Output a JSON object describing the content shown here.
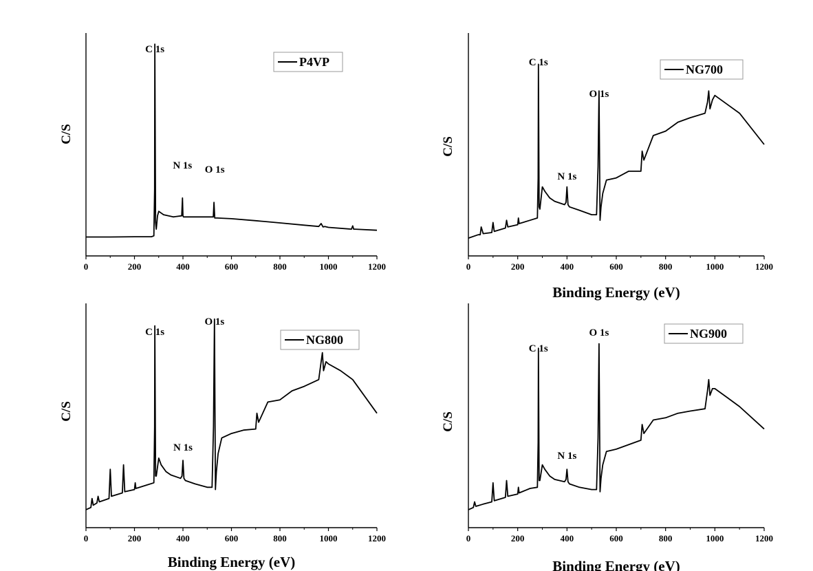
{
  "chart_data": [
    {
      "type": "line",
      "xlabel": "",
      "ylabel": "C/S",
      "xlim": [
        0,
        1200
      ],
      "ylim": [
        0,
        100
      ],
      "xticks": [
        "0",
        "200",
        "400",
        "600",
        "800",
        "1000",
        "1200"
      ],
      "series": [
        {
          "name": "P4VP",
          "color": "#000000",
          "x": [
            0,
            100,
            200,
            270,
            280,
            283,
            284,
            287,
            290,
            295,
            300,
            320,
            360,
            395,
            398,
            400,
            402,
            410,
            450,
            525,
            528,
            531,
            534,
            540,
            600,
            700,
            800,
            900,
            960,
            970,
            978,
            985,
            1000,
            1095,
            1100,
            1104,
            1110,
            1200
          ],
          "y": [
            8.5,
            8.5,
            8.6,
            8.6,
            9,
            30,
            95,
            15,
            12,
            18,
            20,
            18.5,
            17.5,
            18,
            26,
            18,
            17.5,
            17.5,
            17.5,
            17.5,
            24,
            17,
            17,
            17,
            16.7,
            15.8,
            14.8,
            13.8,
            13.2,
            14.5,
            13,
            13.2,
            12.8,
            12,
            13.5,
            12,
            12,
            11.5
          ]
        }
      ],
      "annotations": [
        {
          "text": "C 1s",
          "x": 284
        },
        {
          "text": "N 1s",
          "x": 398
        },
        {
          "text": "O 1s",
          "x": 531
        }
      ]
    },
    {
      "type": "line",
      "xlabel": "Binding Energy (eV)",
      "ylabel": "C/S",
      "xlim": [
        0,
        1200
      ],
      "ylim": [
        0,
        100
      ],
      "xticks": [
        "0",
        "200",
        "400",
        "600",
        "800",
        "1000",
        "1200"
      ],
      "series": [
        {
          "name": "NG700",
          "color": "#000000",
          "x": [
            0,
            40,
            48,
            52,
            60,
            95,
            100,
            105,
            150,
            155,
            160,
            200,
            203,
            206,
            250,
            280,
            283,
            284,
            287,
            290,
            300,
            310,
            330,
            350,
            390,
            396,
            400,
            404,
            410,
            450,
            500,
            520,
            526,
            530,
            534,
            538,
            545,
            560,
            600,
            650,
            700,
            705,
            712,
            750,
            800,
            850,
            900,
            960,
            970,
            975,
            980,
            990,
            1000,
            1050,
            1100,
            1200
          ],
          "y": [
            8,
            9.5,
            9.5,
            13,
            10,
            10.5,
            15,
            11,
            12.5,
            16,
            13,
            14,
            17,
            14.5,
            16,
            17,
            35,
            86,
            22,
            21,
            31,
            29,
            26,
            24.5,
            23,
            24,
            31,
            23,
            22,
            20.5,
            18.5,
            18.5,
            40,
            74,
            16,
            22,
            28,
            34,
            35,
            38,
            38,
            47,
            43,
            54,
            56,
            60,
            62,
            64,
            69,
            74,
            66,
            70,
            72,
            68,
            64,
            50
          ]
        }
      ],
      "annotations": [
        {
          "text": "C 1s",
          "x": 284
        },
        {
          "text": "N 1s",
          "x": 400
        },
        {
          "text": "O 1s",
          "x": 530
        }
      ]
    },
    {
      "type": "line",
      "xlabel": "Binding Energy (eV)",
      "ylabel": "C/S",
      "xlim": [
        0,
        1200
      ],
      "ylim": [
        0,
        100
      ],
      "xticks": [
        "0",
        "200",
        "400",
        "600",
        "800",
        "1000",
        "1200"
      ],
      "series": [
        {
          "name": "NG800",
          "color": "#000000",
          "x": [
            0,
            20,
            25,
            30,
            45,
            50,
            55,
            95,
            100,
            105,
            150,
            155,
            160,
            200,
            203,
            206,
            250,
            280,
            283,
            284,
            287,
            290,
            300,
            310,
            330,
            350,
            390,
            396,
            400,
            404,
            410,
            450,
            500,
            520,
            526,
            530,
            534,
            538,
            545,
            560,
            600,
            650,
            700,
            705,
            712,
            750,
            800,
            850,
            900,
            960,
            970,
            975,
            980,
            990,
            1000,
            1050,
            1100,
            1200
          ],
          "y": [
            8,
            9,
            13,
            10,
            11,
            14,
            11.5,
            13,
            26,
            14,
            15.5,
            28,
            16,
            17,
            20,
            17.5,
            19,
            20,
            45,
            90,
            23,
            23,
            31,
            28,
            25,
            23.5,
            22,
            23,
            30,
            22,
            21,
            19.5,
            18,
            18,
            45,
            93,
            17,
            25,
            33,
            40,
            42,
            43.5,
            44,
            51,
            47,
            56,
            57,
            61,
            63,
            66,
            74,
            78,
            70,
            74,
            73,
            70,
            66,
            51
          ]
        }
      ],
      "annotations": [
        {
          "text": "C 1s",
          "x": 284
        },
        {
          "text": "N 1s",
          "x": 400
        },
        {
          "text": "O 1s",
          "x": 530
        }
      ]
    },
    {
      "type": "line",
      "xlabel": "Binding Energy (eV)",
      "ylabel": "C/S",
      "xlim": [
        0,
        1200
      ],
      "ylim": [
        0,
        100
      ],
      "xticks": [
        "0",
        "200",
        "400",
        "600",
        "800",
        "1000",
        "1200"
      ],
      "series": [
        {
          "name": "NG900",
          "color": "#000000",
          "x": [
            0,
            20,
            25,
            30,
            60,
            95,
            100,
            105,
            150,
            155,
            160,
            200,
            203,
            206,
            250,
            280,
            283,
            284,
            287,
            290,
            300,
            310,
            330,
            350,
            390,
            396,
            400,
            404,
            410,
            450,
            500,
            520,
            526,
            530,
            534,
            538,
            545,
            560,
            600,
            650,
            700,
            705,
            712,
            750,
            800,
            850,
            900,
            960,
            970,
            975,
            980,
            990,
            1000,
            1050,
            1100,
            1200
          ],
          "y": [
            8,
            9,
            11.5,
            9.5,
            10.5,
            11.5,
            20,
            12,
            13.5,
            21,
            14,
            15,
            18,
            15.5,
            17.5,
            18,
            38,
            80,
            21,
            21,
            28,
            26,
            23,
            21.5,
            20.5,
            21.5,
            26,
            20.5,
            19.5,
            18,
            17,
            17,
            40,
            82,
            16,
            22,
            28,
            34,
            35,
            37,
            39,
            46,
            42,
            48,
            49,
            51,
            52,
            53,
            61,
            66,
            59,
            62,
            62,
            58,
            54,
            44
          ]
        }
      ],
      "annotations": [
        {
          "text": "C 1s",
          "x": 284
        },
        {
          "text": "N 1s",
          "x": 400
        },
        {
          "text": "O 1s",
          "x": 530
        }
      ]
    }
  ]
}
